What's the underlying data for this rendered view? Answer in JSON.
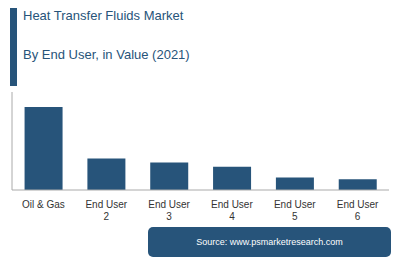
{
  "chart_data": {
    "type": "bar",
    "title": "Heat Transfer Fluids Market",
    "subtitle": "By End User, in Value (2021)",
    "categories": [
      "Oil & Gas",
      "End User\n2",
      "End User\n3",
      "End User\n4",
      "End User\n5",
      "End User\n6"
    ],
    "values": [
      100,
      38,
      33,
      28,
      15,
      13
    ],
    "color": "#27547a",
    "ylim": [
      0,
      118
    ],
    "grid": false,
    "tick_labels": "x",
    "annotations": [
      "Source: www.psmarketresearch.com"
    ]
  }
}
